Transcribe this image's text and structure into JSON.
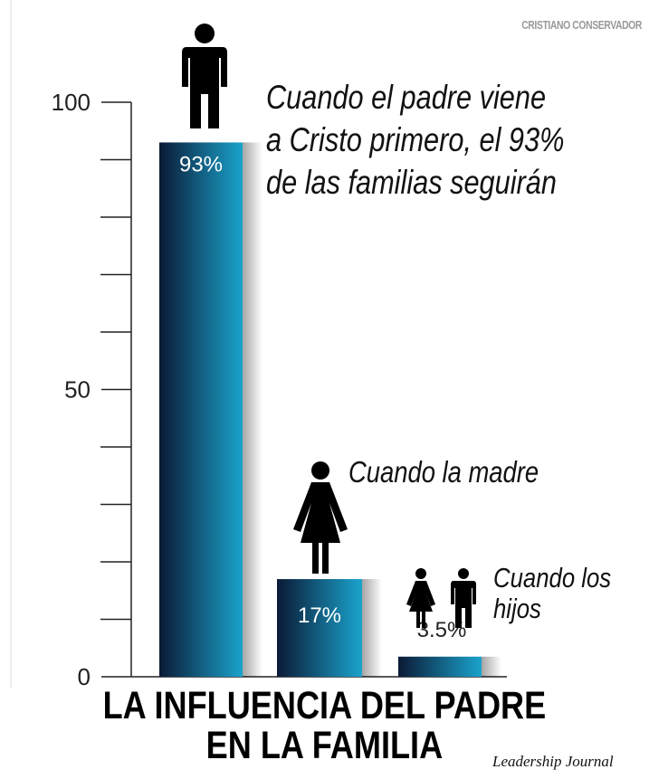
{
  "watermark": "CRISTIANO CONSERVADOR",
  "chart_data": {
    "type": "bar",
    "title": "LA INFLUENCIA DEL PADRE EN LA FAMILIA",
    "title_lines": [
      "LA INFLUENCIA DEL PADRE",
      "EN LA FAMILIA"
    ],
    "categories": [
      "Cuando el padre viene a Cristo primero, el 93% de las familias seguirán",
      "Cuando la madre",
      "Cuando los hijos"
    ],
    "values": [
      93,
      17,
      3.5
    ],
    "value_labels": [
      "93%",
      "17%",
      "3.5%"
    ],
    "ylim": [
      0,
      100
    ],
    "yticks": [
      0,
      50,
      100
    ],
    "ytick_labels": [
      "0",
      "50",
      "100"
    ],
    "minor_tick_step": 10,
    "grid": false,
    "source": "Leadership Journal"
  },
  "captions": {
    "father": [
      "Cuando el padre viene",
      "a Cristo primero, el 93%",
      "de las familias seguirán"
    ],
    "mother": [
      "Cuando la madre"
    ],
    "children": [
      "Cuando los",
      "hijos"
    ]
  },
  "colors": {
    "bar_dark": "#0b1a36",
    "bar_light": "#1aa3cc",
    "icon": "#000000",
    "text": "#111111"
  },
  "icons": [
    "man-icon",
    "woman-icon",
    "girl-icon",
    "boy-icon"
  ]
}
